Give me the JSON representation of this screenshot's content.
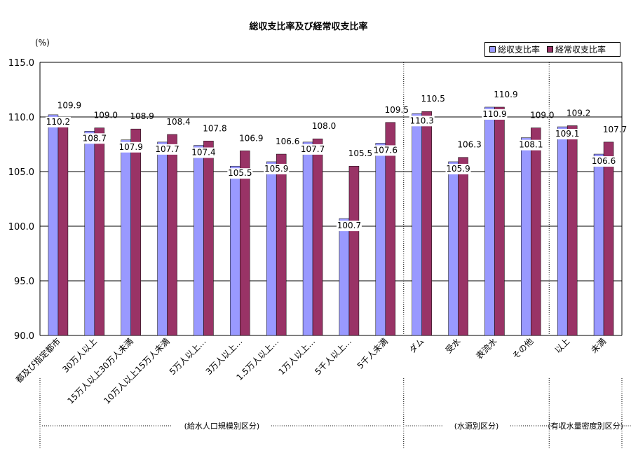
{
  "chart_data": {
    "type": "bar",
    "title": "総収支比率及び経常収支比率",
    "ylabel": "(%)",
    "ylim": [
      90,
      115
    ],
    "yticks": [
      "90.0",
      "95.0",
      "100.0",
      "105.0",
      "110.0",
      "115.0"
    ],
    "categories": [
      "都及び指定都市",
      "30万人以上",
      "15万人以上30万人未満",
      "10万人以上15万人未満",
      "5万人以上…",
      "3万人以上…",
      "1.5万人以上…",
      "1万人以上…",
      "5千人以上…",
      "5千人未満",
      "ダム",
      "受水",
      "表流水",
      "その他",
      "以上",
      "未満"
    ],
    "series": [
      {
        "name": "総収支比率",
        "color": "#9999ff",
        "values": [
          110.2,
          108.7,
          107.9,
          107.7,
          107.4,
          105.5,
          105.9,
          107.7,
          100.7,
          107.6,
          110.3,
          105.9,
          110.9,
          108.1,
          109.1,
          106.6
        ],
        "labels": [
          "110.2",
          "108.7",
          "107.9",
          "107.7",
          "107.4",
          "105.5",
          "105.9",
          "107.7",
          "100.7",
          "107.6",
          "110.3",
          "105.9",
          "110.9",
          "108.1",
          "109.1",
          "106.6"
        ]
      },
      {
        "name": "経常収支比率",
        "color": "#993366",
        "values": [
          109.9,
          109.0,
          108.9,
          108.4,
          107.8,
          106.9,
          106.6,
          108.0,
          105.5,
          109.5,
          110.5,
          106.3,
          110.9,
          109.0,
          109.2,
          107.7
        ],
        "labels": [
          "109.9",
          "109.0",
          "108.9",
          "108.4",
          "107.8",
          "106.9",
          "106.6",
          "108.0",
          "105.5",
          "109.5",
          "110.5",
          "106.3",
          "110.9",
          "109.0",
          "109.2",
          "107.7"
        ]
      }
    ],
    "groups": [
      {
        "label": "(給水人口規模別区分)",
        "start": 0,
        "end": 9
      },
      {
        "label": "(水源別区分)",
        "start": 10,
        "end": 13
      },
      {
        "label": "(有収水量密度別区分)",
        "start": 14,
        "end": 15
      }
    ],
    "grid": true,
    "legend_position": "top-right"
  }
}
